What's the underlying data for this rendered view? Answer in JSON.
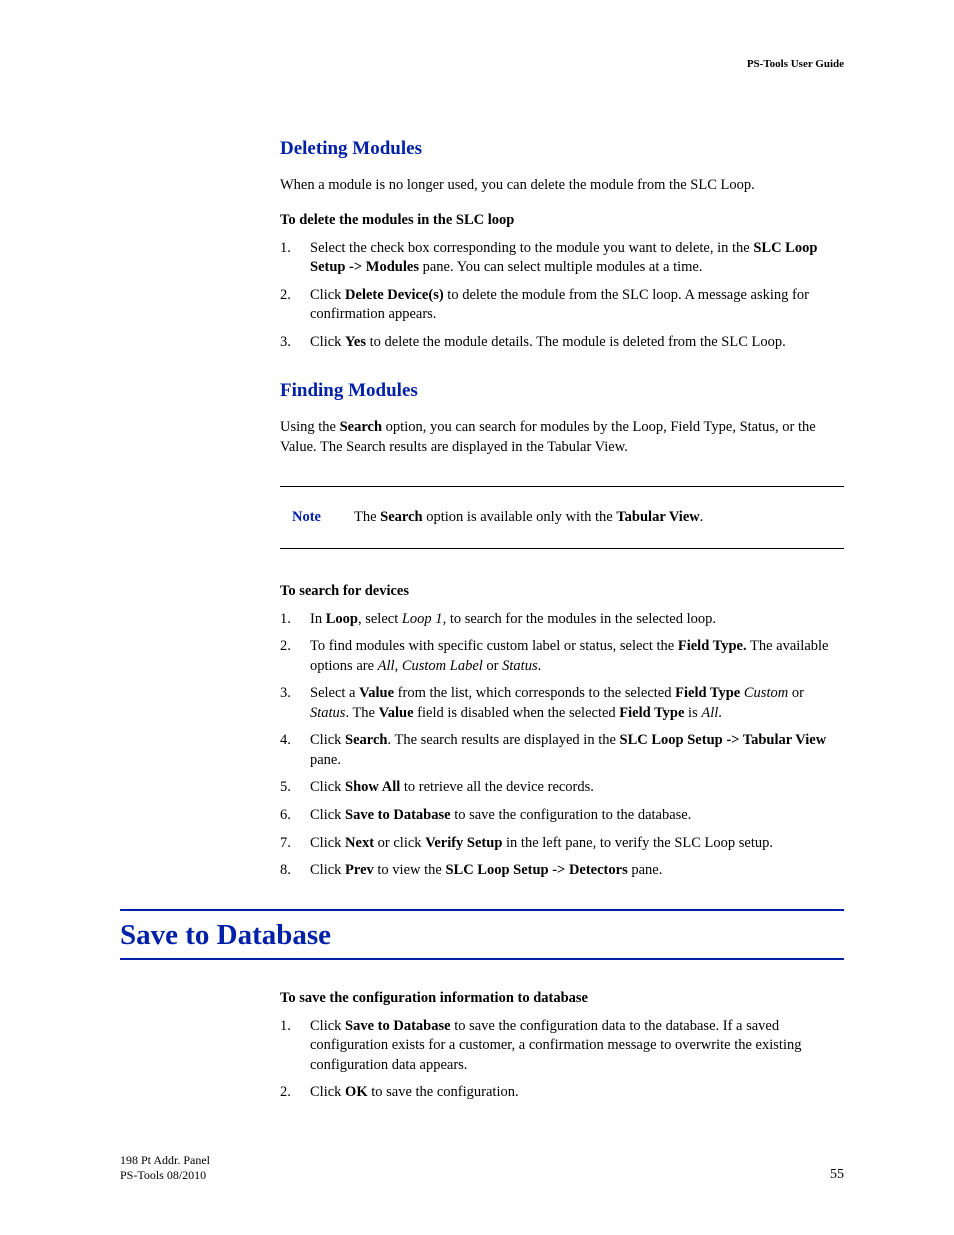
{
  "header": {
    "doc_title": "PS-Tools User Guide"
  },
  "colors": {
    "accent": "#0020a8",
    "text": "#000000",
    "bg": "#ffffff"
  },
  "section_deleting": {
    "heading": "Deleting Modules",
    "intro": "When a module is no longer used, you can delete the module from the SLC Loop.",
    "subhead": "To delete the modules in the SLC loop",
    "step1_a": "Select the check box corresponding to the module you want to delete, in the ",
    "step1_b": "SLC Loop Setup -> Modules",
    "step1_c": " pane. You can select multiple modules at a time.",
    "step2_a": "Click ",
    "step2_b": "Delete Device(s)",
    "step2_c": " to delete the module from the SLC loop. A message asking for confirmation appears.",
    "step3_a": "Click ",
    "step3_b": "Yes",
    "step3_c": " to delete the module details. The module is deleted from the SLC Loop."
  },
  "section_finding": {
    "heading": "Finding Modules",
    "intro_a": "Using the ",
    "intro_b": "Search",
    "intro_c": " option, you can search for modules by the Loop, Field Type, Status, or the Value. The Search results are displayed in the Tabular View.",
    "note_label": "Note",
    "note_a": "The ",
    "note_b": "Search",
    "note_c": " option is available only with the ",
    "note_d": "Tabular View",
    "note_e": ".",
    "subhead": "To search for devices",
    "s1_a": "In ",
    "s1_b": "Loop",
    "s1_c": ", select ",
    "s1_d": "Loop 1",
    "s1_e": ", to search for the modules in the selected loop.",
    "s2_a": "To find modules with specific custom label or status, select the ",
    "s2_b": "Field Type.",
    "s2_c": " The available options are ",
    "s2_d": "All",
    "s2_e": ", ",
    "s2_f": "Custom Label",
    "s2_g": " or ",
    "s2_h": "Status",
    "s2_i": ".",
    "s3_a": "Select a ",
    "s3_b": "Value",
    "s3_c": " from the list, which corresponds to the selected ",
    "s3_d": "Field Type",
    "s3_e": " ",
    "s3_f": "Custom",
    "s3_g": " or ",
    "s3_h": "Status",
    "s3_i": ". The ",
    "s3_j": "Value",
    "s3_k": " field is disabled when the selected ",
    "s3_l": "Field Type",
    "s3_m": " is ",
    "s3_n": "All",
    "s3_o": ".",
    "s4_a": "Click ",
    "s4_b": "Search",
    "s4_c": ". The search results are displayed in the ",
    "s4_d": "SLC Loop Setup -> Tabular View",
    "s4_e": " pane.",
    "s5_a": "Click ",
    "s5_b": "Show All",
    "s5_c": " to retrieve all the device records.",
    "s6_a": "Click ",
    "s6_b": "Save to Database",
    "s6_c": " to save the configuration to the database.",
    "s7_a": "Click ",
    "s7_b": "Next",
    "s7_c": " or click ",
    "s7_d": "Verify Setup",
    "s7_e": " in the left pane, to verify the SLC Loop setup.",
    "s8_a": "Click ",
    "s8_b": "Prev",
    "s8_c": " to view the ",
    "s8_d": "SLC Loop Setup -> Detectors",
    "s8_e": " pane."
  },
  "section_save": {
    "heading": "Save to Database",
    "subhead": "To save the configuration information to database",
    "s1_a": "Click ",
    "s1_b": "Save to Database",
    "s1_c": " to save the configuration data to the database. If a saved configuration exists for a customer, a confirmation message to overwrite the existing configuration data appears.",
    "s2_a": "Click ",
    "s2_b": "OK",
    "s2_c": " to save the configuration."
  },
  "footer": {
    "line1": "198 Pt Addr. Panel",
    "line2": "PS-Tools  08/2010",
    "page_number": "55"
  }
}
